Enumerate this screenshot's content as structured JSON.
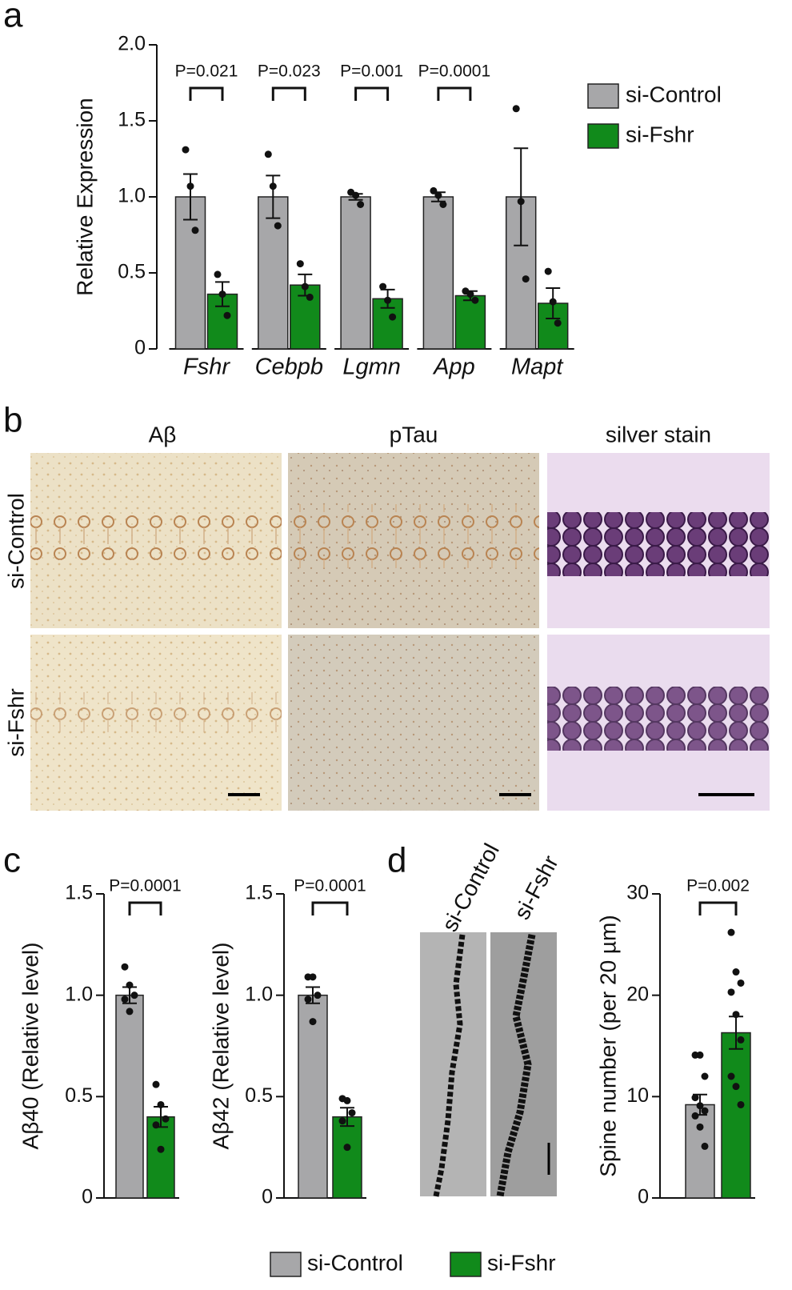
{
  "panel_labels": [
    "a",
    "b",
    "c",
    "d"
  ],
  "images": {
    "columns": [
      "Aβ",
      "pTau",
      "silver stain"
    ],
    "rows": [
      "si-Control",
      "si-Fshr"
    ],
    "dendrites": [
      "si-Control",
      "si-Fshr"
    ]
  },
  "chart_data": [
    {
      "type": "bar",
      "y_label": "Relative Expression",
      "categories": [
        "Fshr",
        "Cebpb",
        "Lgmn",
        "App",
        "Mapt"
      ],
      "ylim": [
        0,
        2
      ],
      "yticks": [
        0,
        0.5,
        {
          "value": 1,
          "label": "1.0"
        },
        1.5,
        {
          "value": 2,
          "label": "2.0"
        }
      ],
      "annotations": [
        "P=0.021",
        "P=0.023",
        "P=0.001",
        "P=0.0001",
        null
      ],
      "legend": "top-right",
      "series": [
        {
          "name": "si-Control",
          "color": "#a7a7a9",
          "values": [
            1,
            1,
            1,
            1,
            1
          ],
          "errors": [
            0.15,
            0.14,
            0.02,
            0.03,
            0.32
          ],
          "points": [
            [
              1.31,
              1.07,
              0.78
            ],
            [
              1.28,
              1.07,
              0.81
            ],
            [
              1.03,
              1.01,
              0.95
            ],
            [
              1.04,
              1.01,
              0.95
            ],
            [
              1.58,
              0.97,
              0.46
            ]
          ]
        },
        {
          "name": "si-Fshr",
          "color": "#118a1b",
          "values": [
            0.36,
            0.42,
            0.33,
            0.35,
            0.3
          ],
          "errors": [
            0.08,
            0.07,
            0.06,
            0.03,
            0.1
          ],
          "points": [
            [
              0.49,
              0.36,
              0.22
            ],
            [
              0.56,
              0.41,
              0.34
            ],
            [
              0.41,
              0.32,
              0.21
            ],
            [
              0.38,
              0.36,
              0.32
            ],
            [
              0.51,
              0.31,
              0.17
            ]
          ]
        }
      ]
    },
    {
      "type": "bar",
      "y_label": "Aβ40 (Relative level)",
      "ylim": [
        0,
        1.5
      ],
      "yticks": [
        0,
        0.5,
        {
          "value": 1,
          "label": "1.0"
        },
        1.5
      ],
      "annotations": [
        "P=0.0001"
      ],
      "legend": "bottom",
      "series": [
        {
          "name": "si-Control",
          "color": "#a7a7a9",
          "values": [
            1
          ],
          "errors": [
            0.04
          ],
          "points": [
            [
              1.14,
              1.05,
              1.0,
              0.98,
              0.92
            ]
          ]
        },
        {
          "name": "si-Fshr",
          "color": "#118a1b",
          "values": [
            0.4
          ],
          "errors": [
            0.05
          ],
          "points": [
            [
              0.56,
              0.46,
              0.39,
              0.36,
              0.24
            ]
          ]
        }
      ]
    },
    {
      "type": "bar",
      "y_label": "Aβ42 (Relative level)",
      "ylim": [
        0,
        1.5
      ],
      "yticks": [
        0,
        0.5,
        {
          "value": 1,
          "label": "1.0"
        },
        1.5
      ],
      "annotations": [
        "P=0.0001"
      ],
      "series": [
        {
          "name": "si-Control",
          "color": "#a7a7a9",
          "values": [
            1
          ],
          "errors": [
            0.04
          ],
          "points": [
            [
              1.09,
              1.09,
              1.0,
              0.98,
              0.87
            ]
          ]
        },
        {
          "name": "si-Fshr",
          "color": "#118a1b",
          "values": [
            0.4
          ],
          "errors": [
            0.045
          ],
          "points": [
            [
              0.49,
              0.48,
              0.42,
              0.38,
              0.25
            ]
          ]
        }
      ]
    },
    {
      "type": "bar",
      "y_label": "Spine number (per 20 µm)",
      "ylim": [
        0,
        30
      ],
      "yticks": [
        0,
        10,
        20,
        30
      ],
      "annotations": [
        "P=0.002"
      ],
      "series": [
        {
          "name": "si-Control",
          "color": "#a7a7a9",
          "values": [
            9.2
          ],
          "errors": [
            1.0
          ],
          "points": [
            [
              14.1,
              14.1,
              12,
              9.9,
              9.1,
              8.6,
              8.1,
              7.0,
              5.1
            ]
          ]
        },
        {
          "name": "si-Fshr",
          "color": "#118a1b",
          "values": [
            16.3
          ],
          "errors": [
            1.6
          ],
          "points": [
            [
              26.2,
              22.3,
              21.2,
              20.3,
              18.1,
              15.6,
              12,
              11,
              9.2
            ]
          ]
        }
      ]
    }
  ]
}
